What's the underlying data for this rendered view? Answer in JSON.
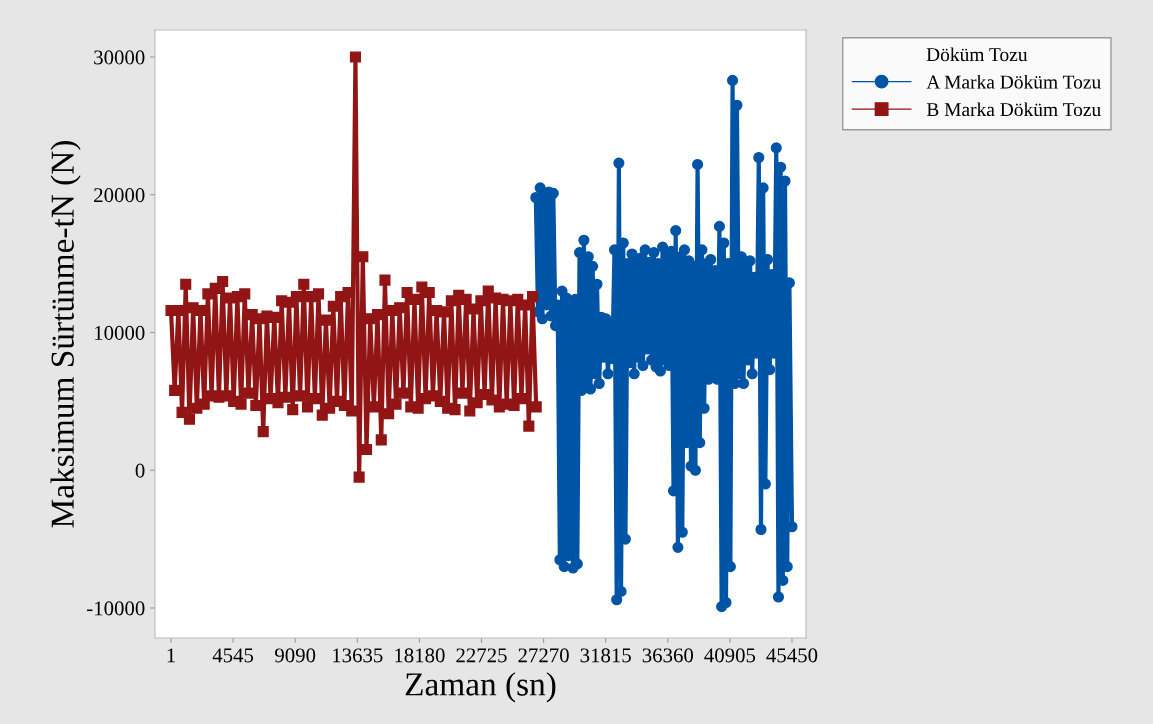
{
  "chart_data": {
    "type": "line",
    "xlabel": "Zaman (sn)",
    "ylabel": "Maksimum Sürtünme-tN (N)",
    "legend_title": "Döküm Tozu",
    "legend": "top right",
    "xlim": [
      -1170,
      46475
    ],
    "ylim": [
      -12180,
      31960
    ],
    "xticks": [
      1,
      4545,
      9090,
      13635,
      18180,
      22725,
      27270,
      31815,
      36360,
      40905,
      45450
    ],
    "yticks": [
      -10000,
      0,
      10000,
      20000,
      30000
    ],
    "grid": false,
    "series": [
      {
        "name": "A Marka Döküm Tozu",
        "color": "#0054a6",
        "marker": "circle",
        "x": [
          26700,
          26860,
          27020,
          27180,
          27340,
          27500,
          27660,
          27820,
          27980,
          28140,
          28300,
          28460,
          28620,
          28780,
          28940,
          29100,
          29260,
          29420,
          29580,
          29740,
          29900,
          30060,
          30220,
          30380,
          30540,
          30700,
          30860,
          31020,
          31180,
          31340,
          31500,
          31660,
          31820,
          31980,
          32140,
          32300,
          32460,
          32620,
          32780,
          32940,
          33100,
          33260,
          33420,
          33580,
          33740,
          33900,
          34060,
          34220,
          34380,
          34540,
          34700,
          34860,
          35020,
          35180,
          35340,
          35500,
          35660,
          35820,
          35980,
          36140,
          36300,
          36460,
          36620,
          36780,
          36940,
          37100,
          37260,
          37420,
          37580,
          37740,
          37900,
          38060,
          38220,
          38380,
          38540,
          38700,
          38860,
          39020,
          39180,
          39340,
          39500,
          39660,
          39820,
          39980,
          40140,
          40300,
          40460,
          40620,
          40780,
          40940,
          41100,
          41260,
          41420,
          41580,
          41740,
          41900,
          42060,
          42220,
          42380,
          42540,
          42700,
          42860,
          43020,
          43180,
          43340,
          43500,
          43660,
          43820,
          43980,
          44140,
          44300,
          44460,
          44620,
          44780,
          44940,
          45100,
          45260,
          45450
        ],
        "values": [
          19800,
          11500,
          20500,
          11000,
          20000,
          12000,
          20200,
          11200,
          20100,
          10500,
          12000,
          -6500,
          13000,
          -7000,
          12500,
          -6200,
          11800,
          -7100,
          12400,
          -6800,
          15800,
          5800,
          16700,
          6200,
          15500,
          5900,
          14800,
          7000,
          13500,
          6300,
          11100,
          8200,
          11000,
          7000,
          10500,
          8100,
          16000,
          -9400,
          22300,
          -8800,
          16500,
          -5000,
          15000,
          7800,
          15700,
          7000,
          15200,
          8200,
          15400,
          7600,
          16000,
          8800,
          15100,
          8000,
          15800,
          7500,
          15000,
          7200,
          16200,
          8000,
          15600,
          7600,
          15900,
          -1500,
          17400,
          -5600,
          15500,
          -4500,
          16000,
          2000,
          15200,
          300,
          14800,
          0,
          22200,
          2000,
          16000,
          4500,
          15000,
          6600,
          15300,
          7000,
          14500,
          6600,
          17700,
          -9900,
          16500,
          -9600,
          15000,
          -7000,
          28300,
          6300,
          26500,
          7000,
          15500,
          6300,
          14800,
          8000,
          15200,
          7000,
          14000,
          8500,
          22700,
          -4300,
          20500,
          -1000,
          15300,
          7300,
          14200,
          8500,
          23400,
          -9200,
          22000,
          -8000,
          21000,
          -7000,
          13600,
          -4100
        ]
      },
      {
        "name": "B Marka Döküm Tozu",
        "color": "#921515",
        "marker": "square",
        "x": [
          1,
          270,
          540,
          810,
          1080,
          1350,
          1620,
          1890,
          2160,
          2430,
          2700,
          2970,
          3240,
          3510,
          3780,
          4050,
          4320,
          4590,
          4860,
          5130,
          5400,
          5670,
          5940,
          6210,
          6480,
          6750,
          7020,
          7290,
          7560,
          7830,
          8100,
          8370,
          8640,
          8910,
          9180,
          9450,
          9720,
          9990,
          10260,
          10530,
          10800,
          11070,
          11340,
          11610,
          11880,
          12150,
          12420,
          12690,
          12960,
          13230,
          13500,
          13770,
          14040,
          14310,
          14580,
          14850,
          15120,
          15390,
          15660,
          15930,
          16200,
          16470,
          16740,
          17010,
          17280,
          17550,
          17820,
          18090,
          18360,
          18630,
          18900,
          19170,
          19440,
          19710,
          19980,
          20250,
          20520,
          20790,
          21060,
          21330,
          21600,
          21870,
          22140,
          22410,
          22680,
          22950,
          23220,
          23490,
          23760,
          24030,
          24300,
          24570,
          24840,
          25110,
          25380,
          25650,
          25920,
          26190,
          26460,
          26730
        ],
        "values": [
          11600,
          5800,
          11600,
          4200,
          13500,
          3700,
          11800,
          4500,
          11600,
          4800,
          12800,
          5400,
          13200,
          5300,
          13700,
          5400,
          12500,
          5000,
          12600,
          4800,
          12800,
          5600,
          11300,
          4700,
          11000,
          2800,
          11200,
          5200,
          11100,
          4900,
          12300,
          5300,
          12200,
          4400,
          12600,
          5400,
          13500,
          4600,
          12600,
          5200,
          12800,
          4000,
          10900,
          4500,
          11900,
          5000,
          12600,
          4700,
          12900,
          4300,
          30000,
          -500,
          15500,
          1500,
          11000,
          4600,
          11300,
          2200,
          13800,
          4100,
          11600,
          4800,
          11800,
          5600,
          12900,
          4600,
          12400,
          4500,
          13300,
          5200,
          12900,
          5400,
          11600,
          5000,
          11500,
          4500,
          12300,
          4400,
          12700,
          5600,
          12400,
          4300,
          11700,
          4900,
          12300,
          5500,
          13000,
          5100,
          12500,
          4600,
          12400,
          4800,
          12300,
          4700,
          12400,
          5200,
          12000,
          3200,
          12600,
          4600
        ]
      }
    ]
  }
}
